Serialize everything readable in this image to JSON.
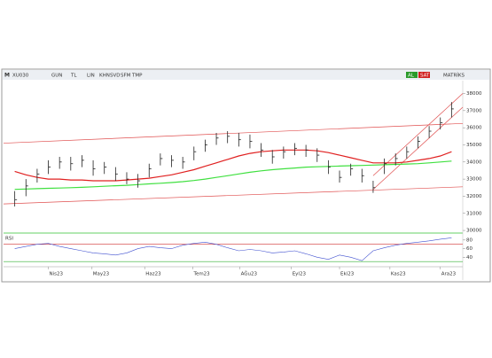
{
  "toolbar": [
    "XU030",
    "GUN",
    "TL",
    "LIN",
    "KHN",
    "SVD",
    "SFM",
    "TMP",
    "AL",
    "SAT",
    "MATRİKS"
  ],
  "chart_data": [
    {
      "type": "ohlc",
      "x": [
        0,
        1,
        2,
        3,
        4,
        5,
        6,
        7,
        8,
        9,
        10,
        11,
        12,
        13,
        14,
        15,
        16,
        17,
        18,
        19,
        20,
        21,
        22,
        23,
        24,
        25,
        26,
        27,
        28,
        29,
        30,
        31,
        32,
        33,
        34,
        35,
        36,
        37,
        38,
        39
      ],
      "high": [
        32300,
        33000,
        33600,
        34100,
        34300,
        34300,
        34400,
        34100,
        34000,
        33700,
        33400,
        33300,
        33900,
        34500,
        34400,
        34300,
        34900,
        35300,
        35700,
        35800,
        35700,
        35600,
        35100,
        34700,
        34900,
        35100,
        35000,
        34800,
        34100,
        33500,
        33900,
        33600,
        32900,
        34200,
        34500,
        34900,
        35500,
        36100,
        36600,
        37500
      ],
      "low": [
        31400,
        32000,
        32800,
        33300,
        33600,
        33500,
        33700,
        33200,
        33300,
        32900,
        32700,
        32500,
        33100,
        33800,
        33700,
        33600,
        34100,
        34600,
        35000,
        35100,
        34900,
        34800,
        34300,
        33900,
        34200,
        34400,
        34300,
        34000,
        33300,
        32800,
        33200,
        32800,
        32200,
        33300,
        33800,
        34200,
        34800,
        35400,
        35900,
        36600
      ],
      "close": [
        31800,
        32600,
        33300,
        33700,
        34000,
        33900,
        34100,
        33600,
        33700,
        33300,
        33000,
        32900,
        33600,
        34200,
        34100,
        34000,
        34600,
        35000,
        35400,
        35500,
        35300,
        35200,
        34700,
        34300,
        34600,
        34800,
        34700,
        34400,
        33700,
        33100,
        33600,
        33200,
        32500,
        33900,
        34200,
        34600,
        35200,
        35800,
        36300,
        37100
      ],
      "color": "#222",
      "series": [
        {
          "color": "#e02020",
          "values": [
            33450,
            33250,
            33100,
            33000,
            33000,
            32950,
            32950,
            32900,
            32900,
            32900,
            32950,
            33000,
            33050,
            33150,
            33250,
            33400,
            33550,
            33750,
            33950,
            34150,
            34350,
            34500,
            34600,
            34650,
            34700,
            34700,
            34700,
            34650,
            34550,
            34400,
            34250,
            34100,
            33950,
            33950,
            33950,
            34000,
            34100,
            34200,
            34350,
            34600
          ]
        },
        {
          "color": "#40e040",
          "values": [
            32400,
            32420,
            32440,
            32460,
            32480,
            32500,
            32520,
            32550,
            32580,
            32610,
            32640,
            32680,
            32720,
            32760,
            32800,
            32850,
            32920,
            33000,
            33100,
            33200,
            33300,
            33400,
            33480,
            33550,
            33600,
            33650,
            33700,
            33720,
            33740,
            33760,
            33780,
            33800,
            33820,
            33840,
            33860,
            33880,
            33900,
            33950,
            34000,
            34050
          ]
        }
      ],
      "lines": [
        {
          "x": [
            -1,
            40
          ],
          "y": [
            35100,
            36250
          ],
          "color": "#e05050"
        },
        {
          "x": [
            -1,
            40
          ],
          "y": [
            31550,
            32550
          ],
          "color": "#e05050"
        },
        {
          "x": [
            32,
            40
          ],
          "y": [
            32400,
            37200
          ],
          "color": "#e05050"
        },
        {
          "x": [
            32,
            40
          ],
          "y": [
            33200,
            38000
          ],
          "color": "#e05050"
        }
      ],
      "xlim": [
        -1,
        40
      ],
      "ylim": [
        29900,
        38700
      ],
      "yticks": [
        30000,
        31000,
        32000,
        33000,
        34000,
        35000,
        36000,
        37000,
        38000
      ],
      "xticks": [
        {
          "value": 3,
          "label": "Nis23"
        },
        {
          "value": 6.9,
          "label": "May23"
        },
        {
          "value": 11.6,
          "label": "Haz23"
        },
        {
          "value": 15.9,
          "label": "Tem23"
        },
        {
          "value": 20.1,
          "label": "AĞu23"
        },
        {
          "value": 24.7,
          "label": "Eyl23"
        },
        {
          "value": 29,
          "label": "Eki23"
        },
        {
          "value": 33.5,
          "label": "Kas23"
        },
        {
          "value": 38,
          "label": "Ara23"
        }
      ]
    },
    {
      "type": "line",
      "title": "RSI",
      "x": [
        0,
        1,
        2,
        3,
        4,
        5,
        6,
        7,
        8,
        9,
        10,
        11,
        12,
        13,
        14,
        15,
        16,
        17,
        18,
        19,
        20,
        21,
        22,
        23,
        24,
        25,
        26,
        27,
        28,
        29,
        30,
        31,
        32,
        33,
        34,
        35,
        36,
        37,
        38,
        39
      ],
      "series": [
        {
          "color": "#4050d0",
          "values": [
            60,
            65,
            70,
            72,
            65,
            60,
            55,
            50,
            48,
            45,
            50,
            60,
            65,
            62,
            60,
            68,
            72,
            75,
            70,
            62,
            55,
            58,
            55,
            50,
            52,
            55,
            48,
            40,
            35,
            45,
            40,
            32,
            55,
            62,
            68,
            72,
            75,
            78,
            82,
            85
          ]
        }
      ],
      "levels": [
        {
          "value": 70,
          "color": "#d03030"
        },
        {
          "value": 30,
          "color": "#30b030"
        }
      ],
      "xlim": [
        -1,
        40
      ],
      "ylim": [
        20,
        92
      ],
      "yticks": [
        40,
        60,
        80
      ]
    }
  ]
}
